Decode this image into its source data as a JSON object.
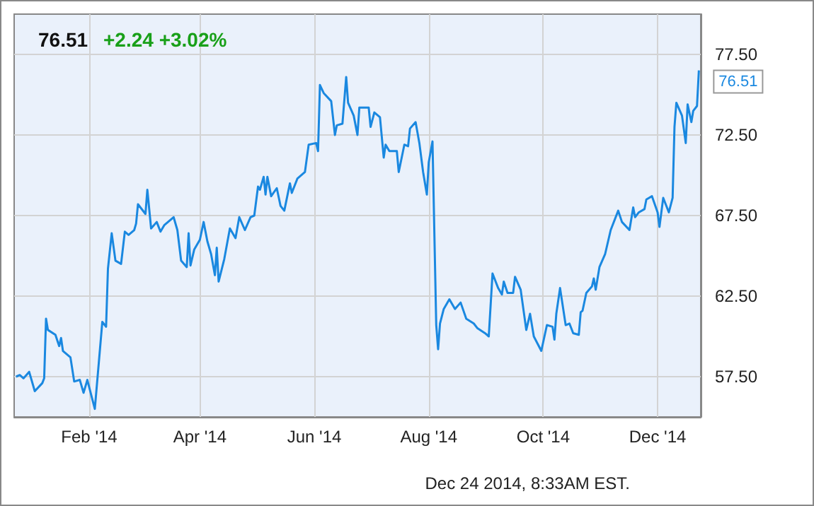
{
  "chart_data": {
    "type": "line",
    "title": "76.51",
    "subtitle": "+2.24 +3.02%",
    "annotations": [
      {
        "text": "76.51",
        "x": "2014-12-23",
        "y": 76.51
      },
      "Dec 24 2014, 8:33AM EST."
    ],
    "x": [
      "2013-12-24",
      "2013-12-26",
      "2013-12-28",
      "2013-12-31",
      "2014-01-03",
      "2014-01-07",
      "2014-01-08",
      "2014-01-09",
      "2014-01-10",
      "2014-01-14",
      "2014-01-16",
      "2014-01-17",
      "2014-01-18",
      "2014-01-22",
      "2014-01-24",
      "2014-01-27",
      "2014-01-29",
      "2014-01-31",
      "2014-02-02",
      "2014-02-04",
      "2014-02-08",
      "2014-02-10",
      "2014-02-11",
      "2014-02-13",
      "2014-02-15",
      "2014-02-18",
      "2014-02-20",
      "2014-02-22",
      "2014-02-25",
      "2014-02-26",
      "2014-02-27",
      "2014-03-03",
      "2014-03-04",
      "2014-03-06",
      "2014-03-09",
      "2014-03-11",
      "2014-03-13",
      "2014-03-18",
      "2014-03-20",
      "2014-03-22",
      "2014-03-25",
      "2014-03-26",
      "2014-03-27",
      "2014-03-29",
      "2014-04-01",
      "2014-04-03",
      "2014-04-05",
      "2014-04-07",
      "2014-04-09",
      "2014-04-10",
      "2014-04-11",
      "2014-04-14",
      "2014-04-17",
      "2014-04-20",
      "2014-04-22",
      "2014-04-25",
      "2014-04-28",
      "2014-04-30",
      "2014-05-02",
      "2014-05-03",
      "2014-05-05",
      "2014-05-06",
      "2014-05-07",
      "2014-05-09",
      "2014-05-12",
      "2014-05-14",
      "2014-05-16",
      "2014-05-19",
      "2014-05-20",
      "2014-05-23",
      "2014-05-27",
      "2014-05-29",
      "2014-06-02",
      "2014-06-03",
      "2014-06-04",
      "2014-06-06",
      "2014-06-10",
      "2014-06-12",
      "2014-06-13",
      "2014-06-16",
      "2014-06-18",
      "2014-06-19",
      "2014-06-22",
      "2014-06-24",
      "2014-06-25",
      "2014-06-30",
      "2014-07-01",
      "2014-07-03",
      "2014-07-06",
      "2014-07-08",
      "2014-07-09",
      "2014-07-11",
      "2014-07-15",
      "2014-07-16",
      "2014-07-19",
      "2014-07-21",
      "2014-07-22",
      "2014-07-25",
      "2014-07-27",
      "2014-07-29",
      "2014-07-31",
      "2014-08-01",
      "2014-08-03",
      "2014-08-05",
      "2014-08-06",
      "2014-08-07",
      "2014-08-09",
      "2014-08-12",
      "2014-08-15",
      "2014-08-18",
      "2014-08-21",
      "2014-08-25",
      "2014-08-27",
      "2014-08-31",
      "2014-09-02",
      "2014-09-04",
      "2014-09-07",
      "2014-09-09",
      "2014-09-10",
      "2014-09-12",
      "2014-09-15",
      "2014-09-16",
      "2014-09-19",
      "2014-09-22",
      "2014-09-24",
      "2014-09-26",
      "2014-09-30",
      "2014-10-03",
      "2014-10-06",
      "2014-10-07",
      "2014-10-08",
      "2014-10-10",
      "2014-10-13",
      "2014-10-15",
      "2014-10-17",
      "2014-10-20",
      "2014-10-21",
      "2014-10-22",
      "2014-10-24",
      "2014-10-27",
      "2014-10-28",
      "2014-10-29",
      "2014-10-31",
      "2014-11-03",
      "2014-11-06",
      "2014-11-10",
      "2014-11-12",
      "2014-11-16",
      "2014-11-18",
      "2014-11-19",
      "2014-11-21",
      "2014-11-24",
      "2014-11-25",
      "2014-11-28",
      "2014-12-01",
      "2014-12-02",
      "2014-12-04",
      "2014-12-07",
      "2014-12-09",
      "2014-12-10",
      "2014-12-11",
      "2014-12-14",
      "2014-12-16",
      "2014-12-17",
      "2014-12-19",
      "2014-12-20",
      "2014-12-22",
      "2014-12-23"
    ],
    "series": [
      {
        "color": "#1a88e0",
        "values": [
          57.5,
          57.6,
          57.4,
          57.8,
          56.6,
          57.1,
          57.4,
          61.1,
          60.4,
          60.1,
          59.4,
          59.9,
          59.1,
          58.7,
          57.2,
          57.3,
          56.5,
          57.3,
          56.4,
          55.5,
          60.9,
          60.6,
          64.2,
          66.4,
          64.7,
          64.5,
          66.5,
          66.3,
          66.6,
          67.0,
          68.2,
          67.6,
          69.1,
          66.7,
          67.1,
          66.5,
          66.9,
          67.4,
          66.6,
          64.7,
          64.3,
          66.4,
          64.4,
          65.4,
          66.0,
          67.1,
          65.9,
          65.1,
          63.8,
          65.5,
          63.4,
          64.8,
          66.7,
          66.1,
          67.4,
          66.6,
          67.4,
          67.5,
          69.3,
          69.1,
          69.9,
          68.8,
          69.9,
          68.7,
          69.2,
          68.1,
          67.8,
          69.5,
          68.9,
          69.8,
          70.2,
          71.9,
          72.0,
          71.5,
          75.6,
          75.1,
          74.6,
          72.5,
          73.1,
          73.2,
          76.1,
          74.5,
          73.7,
          72.5,
          74.2,
          74.2,
          73.0,
          73.9,
          73.6,
          71.1,
          71.9,
          71.5,
          71.5,
          70.2,
          71.9,
          71.8,
          72.9,
          73.3,
          72.0,
          70.2,
          68.8,
          70.8,
          72.1,
          60.7,
          59.2,
          60.8,
          61.7,
          62.3,
          61.7,
          62.1,
          61.1,
          60.8,
          60.5,
          60.2,
          60.0,
          63.9,
          63.0,
          62.6,
          63.4,
          62.7,
          62.7,
          63.7,
          62.9,
          60.4,
          61.4,
          60.0,
          59.1,
          60.7,
          60.6,
          59.8,
          61.4,
          63.0,
          60.7,
          60.8,
          60.2,
          60.1,
          61.5,
          61.6,
          62.7,
          63.1,
          63.6,
          62.9,
          64.3,
          65.1,
          66.6,
          67.8,
          67.1,
          66.6,
          68.0,
          67.4,
          67.7,
          67.9,
          68.5,
          68.7,
          67.7,
          66.8,
          68.6,
          67.7,
          68.6,
          73.0,
          74.5,
          73.7,
          72.0,
          74.4,
          73.3,
          74.0,
          74.3,
          76.51
        ]
      }
    ],
    "xlim": [
      "2013-12-23",
      "2014-12-24"
    ],
    "xticks": [
      {
        "value": "2014-02-01",
        "label": "Feb '14"
      },
      {
        "value": "2014-04-01",
        "label": "Apr '14"
      },
      {
        "value": "2014-06-01",
        "label": "Jun '14"
      },
      {
        "value": "2014-08-01",
        "label": "Aug '14"
      },
      {
        "value": "2014-10-01",
        "label": "Oct '14"
      },
      {
        "value": "2014-12-01",
        "label": "Dec '14"
      }
    ],
    "ylim": [
      55,
      80
    ],
    "yticks": [
      {
        "value": 57.5,
        "label": "57.50"
      },
      {
        "value": 62.5,
        "label": "62.50"
      },
      {
        "value": 67.5,
        "label": "67.50"
      },
      {
        "value": 72.5,
        "label": "72.50"
      },
      {
        "value": 77.5,
        "label": "77.50"
      }
    ],
    "grid": true,
    "marker": "none",
    "line_style": "solid"
  }
}
